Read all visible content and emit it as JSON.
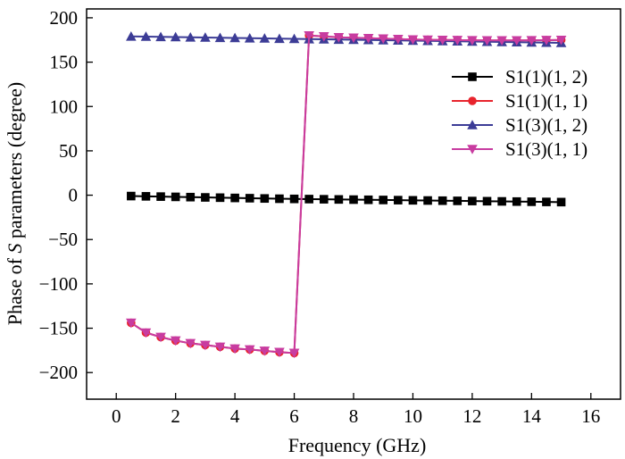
{
  "chart_data": {
    "type": "line",
    "title": "",
    "xlabel": "Frequency (GHz)",
    "ylabel": {
      "prefix": "Phase of ",
      "italic": "S",
      "suffix": " parameters (degree)"
    },
    "xlim": [
      -1,
      17
    ],
    "ylim": [
      -230,
      210
    ],
    "xticks": [
      0,
      2,
      4,
      6,
      8,
      10,
      12,
      14,
      16
    ],
    "yticks": [
      -200,
      -150,
      -100,
      -50,
      0,
      50,
      100,
      150,
      200
    ],
    "ytick_labels": [
      "−200",
      "−150",
      "−100",
      "−50",
      "0",
      "50",
      "100",
      "150",
      "200"
    ],
    "grid": false,
    "legend_position": "right",
    "x": [
      0.5,
      1.0,
      1.5,
      2.0,
      2.5,
      3.0,
      3.5,
      4.0,
      4.5,
      5.0,
      5.5,
      6.0,
      6.5,
      7.0,
      7.5,
      8.0,
      8.5,
      9.0,
      9.5,
      10.0,
      10.5,
      11.0,
      11.5,
      12.0,
      12.5,
      13.0,
      13.5,
      14.0,
      14.5,
      15.0
    ],
    "series": [
      {
        "name": "S1(1)(1, 2)",
        "color": "#000000",
        "marker": "square",
        "values": [
          -1.0,
          -1.3,
          -1.6,
          -1.9,
          -2.2,
          -2.5,
          -2.8,
          -3.1,
          -3.4,
          -3.7,
          -4.0,
          -4.2,
          -4.4,
          -4.6,
          -4.8,
          -5.0,
          -5.2,
          -5.4,
          -5.6,
          -5.8,
          -6.0,
          -6.2,
          -6.4,
          -6.6,
          -6.8,
          -7.0,
          -7.2,
          -7.4,
          -7.6,
          -7.8
        ]
      },
      {
        "name": "S1(1)(1, 1)",
        "color": "#e8242d",
        "marker": "circle",
        "values": [
          -144,
          -155,
          -160,
          -164,
          -167,
          -169,
          -171,
          -173,
          -174,
          -175.5,
          -177,
          -178,
          180,
          179,
          178,
          177.5,
          177,
          176.5,
          176,
          175.5,
          175.2,
          175,
          174.8,
          174.6,
          174.5,
          174.5,
          174.5,
          174.6,
          174.8,
          175
        ]
      },
      {
        "name": "S1(3)(1, 2)",
        "color": "#3c3c96",
        "marker": "triangle-up",
        "values": [
          179,
          178.8,
          178.5,
          178.3,
          178,
          177.8,
          177.5,
          177.3,
          177,
          176.8,
          176.5,
          176.3,
          176,
          175.8,
          175.5,
          175.3,
          175,
          174.8,
          174.5,
          174.3,
          174,
          173.8,
          173.5,
          173.3,
          173,
          172.8,
          172.5,
          172.3,
          172,
          171.8
        ]
      },
      {
        "name": "S1(3)(1, 1)",
        "color": "#c83ca0",
        "marker": "triangle-down",
        "values": [
          -144,
          -155,
          -160,
          -164,
          -167,
          -169,
          -171,
          -173,
          -174,
          -175.5,
          -177,
          -178,
          180,
          179,
          178,
          177.5,
          177,
          176.5,
          176,
          175.5,
          175.2,
          175,
          174.8,
          174.6,
          174.5,
          174.5,
          174.5,
          174.6,
          174.8,
          175
        ]
      }
    ]
  }
}
